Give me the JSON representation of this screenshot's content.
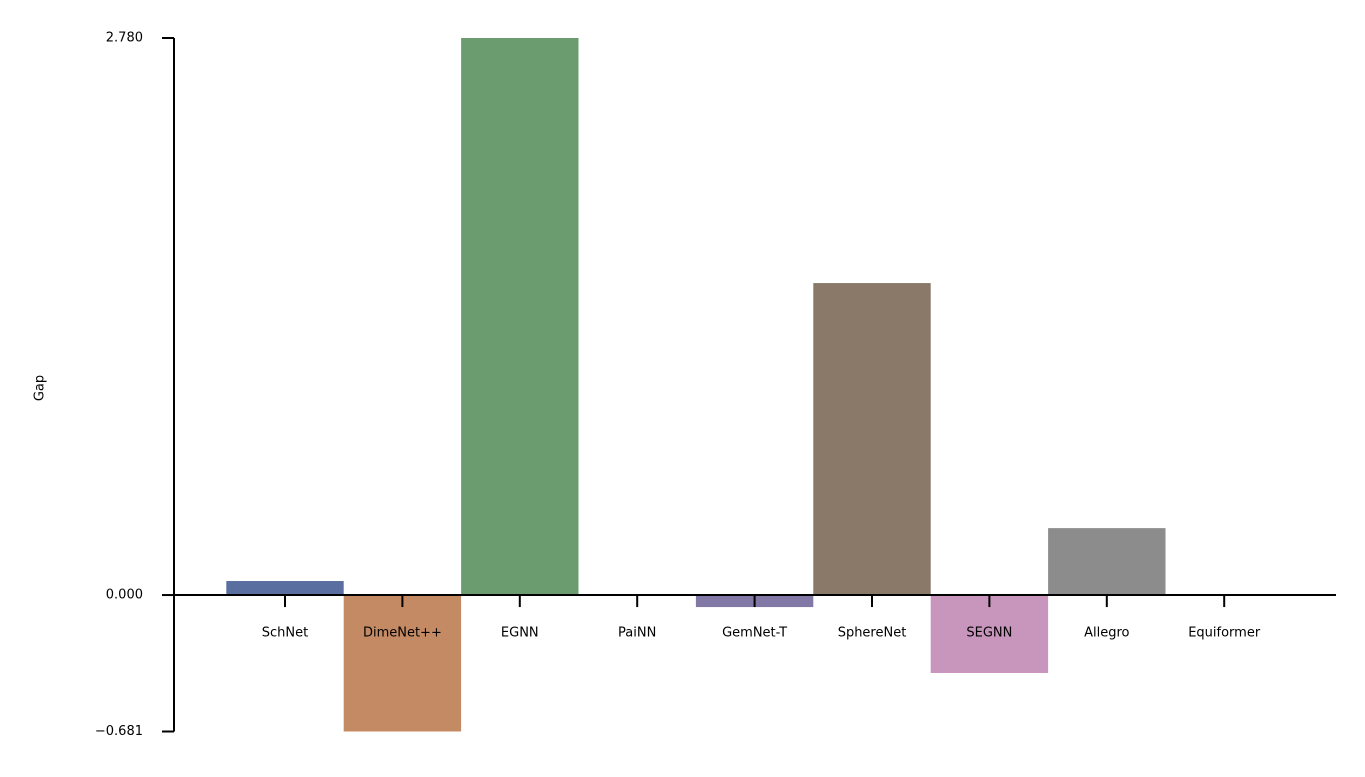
{
  "chart_data": {
    "type": "bar",
    "ylabel": "Gap",
    "categories": [
      "SchNet",
      "DimeNet++",
      "EGNN",
      "PaiNN",
      "GemNet-T",
      "SphereNet",
      "SEGNN",
      "Allegro",
      "Equiformer"
    ],
    "values": [
      0.07,
      -0.681,
      2.78,
      0,
      -0.06,
      1.557,
      -0.389,
      0.334,
      0
    ],
    "colors": [
      "#5a6fa0",
      "#c48a63",
      "#6b9c70",
      "#b55d60",
      "#8178a6",
      "#8a7968",
      "#c895bd",
      "#8c8c8c",
      "#c9c07a"
    ],
    "ylim": [
      -0.681,
      2.78
    ],
    "yticks": [
      {
        "value": -0.681,
        "label": "−0.681"
      },
      {
        "value": 0,
        "label": "0.000"
      },
      {
        "value": 2.78,
        "label": "2.780"
      }
    ],
    "grid": false
  }
}
